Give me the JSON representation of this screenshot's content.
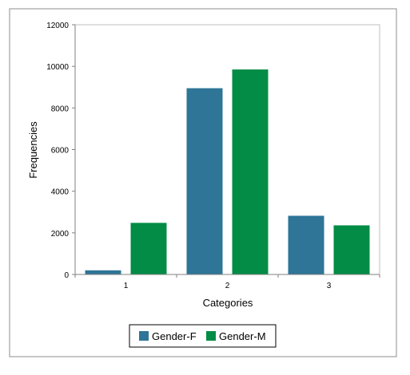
{
  "chart_data": {
    "type": "bar",
    "categories": [
      "1",
      "2",
      "3"
    ],
    "series": [
      {
        "name": "Gender-F",
        "color": "#2e7597",
        "values": [
          200,
          8950,
          2820
        ]
      },
      {
        "name": "Gender-M",
        "color": "#038c45",
        "values": [
          2480,
          9850,
          2360
        ]
      }
    ],
    "xlabel": "Categories",
    "ylabel": "Frequencies",
    "ylim": [
      0,
      12000
    ],
    "yticks": [
      0,
      2000,
      4000,
      6000,
      8000,
      10000,
      12000
    ],
    "grid": false,
    "legend_position": "bottom"
  }
}
